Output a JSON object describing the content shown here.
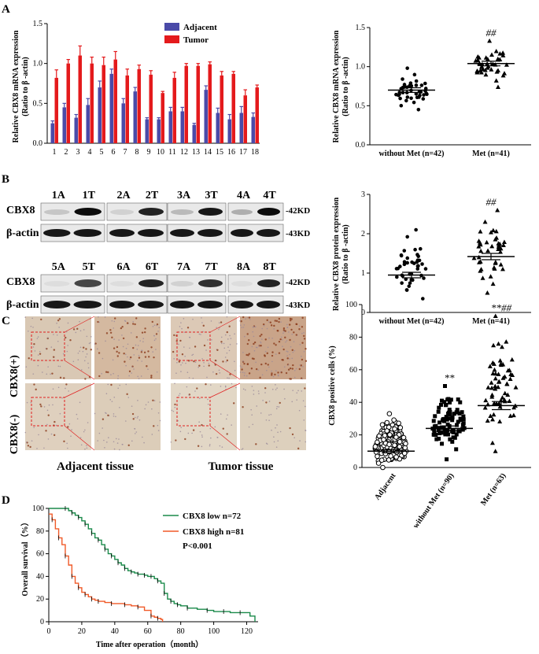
{
  "panels": {
    "A": "A",
    "B": "B",
    "C": "C",
    "D": "D"
  },
  "colors": {
    "adjacent": "#4a4aa8",
    "tumor": "#e41a1c",
    "kmLow": "#1a8a4a",
    "kmHigh": "#f05a28",
    "ihcRed": "#e02020"
  },
  "chart_data": [
    {
      "id": "A-bar",
      "type": "bar",
      "ylabel_line1": "Relative CBX8 mRNA expression",
      "ylabel_line2": "(Ratio to β -actin)",
      "categories": [
        "1",
        "2",
        "3",
        "4",
        "5",
        "6",
        "7",
        "8",
        "9",
        "10",
        "11",
        "12",
        "13",
        "14",
        "15",
        "16",
        "17",
        "18"
      ],
      "series": [
        {
          "name": "Adjacent",
          "values": [
            0.25,
            0.45,
            0.32,
            0.48,
            0.7,
            0.87,
            0.5,
            0.65,
            0.3,
            0.3,
            0.4,
            0.4,
            0.23,
            0.67,
            0.38,
            0.3,
            0.38,
            0.33
          ],
          "errors": [
            0.03,
            0.05,
            0.04,
            0.08,
            0.08,
            0.06,
            0.06,
            0.05,
            0.02,
            0.02,
            0.05,
            0.05,
            0.02,
            0.05,
            0.06,
            0.06,
            0.08,
            0.05
          ]
        },
        {
          "name": "Tumor",
          "values": [
            0.82,
            1.0,
            1.1,
            1.0,
            0.98,
            1.05,
            0.85,
            0.93,
            0.86,
            0.63,
            0.82,
            0.97,
            0.97,
            0.99,
            0.85,
            0.87,
            0.6,
            0.7
          ],
          "errors": [
            0.1,
            0.05,
            0.12,
            0.08,
            0.1,
            0.1,
            0.08,
            0.05,
            0.05,
            0.02,
            0.07,
            0.03,
            0.03,
            0.03,
            0.05,
            0.03,
            0.07,
            0.03
          ]
        }
      ],
      "ylim": [
        0,
        1.5
      ],
      "yticks": [
        "0.0",
        "0.5",
        "1.0",
        "1.5"
      ]
    },
    {
      "id": "A-scatter",
      "type": "scatter",
      "ylabel_line1": "Relative CBX8 mRNA expression",
      "ylabel_line2": "(Ratio to β -actin)",
      "categories": [
        "without Met (n=42)",
        "Met (n=41)"
      ],
      "means": [
        0.7,
        1.04
      ],
      "sem": [
        0.03,
        0.03
      ],
      "annotation": "##",
      "ylim": [
        0,
        1.5
      ],
      "yticks": [
        "0.0",
        "0.5",
        "1.0",
        "1.5"
      ],
      "n": [
        42,
        41
      ],
      "range": [
        [
          0.45,
          0.98
        ],
        [
          0.74,
          1.33
        ]
      ]
    },
    {
      "id": "B-scatter",
      "type": "scatter",
      "ylabel_line1": "Relative CBX8 protein expression",
      "ylabel_line2": "(Ratio to β -actin)",
      "categories": [
        "without Met (n=42)",
        "Met (n=41)"
      ],
      "means": [
        0.95,
        1.42
      ],
      "sem": [
        0.07,
        0.08
      ],
      "annotation": "##",
      "ylim": [
        0,
        3
      ],
      "yticks": [
        "0",
        "1",
        "2",
        "3"
      ],
      "n": [
        42,
        41
      ],
      "range": [
        [
          0.35,
          2.1
        ],
        [
          0.5,
          2.6
        ]
      ]
    },
    {
      "id": "C-scatter",
      "type": "scatter",
      "ylabel_line1": "CBX8 positive cells (%)",
      "categories": [
        "Adjacent",
        "without Met (n=90)",
        "Met (n=63)"
      ],
      "means": [
        10,
        24,
        38
      ],
      "sem": [
        1,
        1.5,
        2.5
      ],
      "annotations": [
        "",
        "**",
        "**##"
      ],
      "ylim": [
        0,
        100
      ],
      "yticks": [
        "0",
        "20",
        "40",
        "60",
        "80",
        "100"
      ],
      "n": [
        150,
        90,
        63
      ],
      "range": [
        [
          0,
          33
        ],
        [
          5,
          50
        ],
        [
          10,
          93
        ]
      ]
    },
    {
      "id": "D-km",
      "type": "line",
      "xlabel": "Time after operation（month）",
      "ylabel": "Overall survival（%）",
      "xticks": [
        "0",
        "20",
        "40",
        "60",
        "80",
        "100",
        "120"
      ],
      "yticks": [
        "0",
        "20",
        "40",
        "60",
        "80",
        "100"
      ],
      "xlim": [
        0,
        125
      ],
      "ylim": [
        0,
        100
      ],
      "legend": [
        "CBX8 low n=72",
        "CBX8 high n=81"
      ],
      "pvalue": "P<0.001",
      "series": [
        {
          "name": "CBX8 low n=72",
          "x": [
            0,
            10,
            12,
            14,
            16,
            18,
            20,
            22,
            24,
            26,
            28,
            30,
            32,
            34,
            36,
            38,
            40,
            42,
            44,
            46,
            48,
            50,
            52,
            54,
            56,
            58,
            60,
            62,
            64,
            66,
            68,
            70,
            72,
            74,
            76,
            78,
            80,
            84,
            90,
            96,
            100,
            106,
            110,
            116,
            122,
            125
          ],
          "y": [
            100,
            100,
            98,
            96,
            94,
            92,
            89,
            86,
            82,
            78,
            74,
            72,
            68,
            64,
            60,
            58,
            55,
            52,
            50,
            47,
            45,
            44,
            43,
            42,
            42,
            41,
            40,
            40,
            38,
            36,
            34,
            25,
            20,
            18,
            16,
            15,
            14,
            12,
            11,
            10,
            9,
            9,
            8,
            8,
            5,
            0
          ]
        },
        {
          "name": "CBX8 high n=81",
          "x": [
            0,
            2,
            4,
            6,
            8,
            10,
            12,
            14,
            16,
            18,
            20,
            22,
            24,
            26,
            28,
            30,
            34,
            38,
            42,
            46,
            50,
            54,
            58,
            62,
            64,
            66,
            68,
            69
          ],
          "y": [
            95,
            90,
            82,
            74,
            68,
            58,
            50,
            40,
            34,
            30,
            26,
            24,
            22,
            20,
            19,
            18,
            17,
            16,
            16,
            15,
            14,
            13,
            10,
            5,
            4,
            3,
            2,
            0
          ]
        }
      ]
    }
  ],
  "panelB": {
    "lanes_top": [
      "1A",
      "1T",
      "2A",
      "2T",
      "3A",
      "3T",
      "4A",
      "4T"
    ],
    "lanes_bottom": [
      "5A",
      "5T",
      "6A",
      "6T",
      "7A",
      "7T",
      "8A",
      "8T"
    ],
    "row1": "CBX8",
    "row2": "β-actin",
    "kd1": "-42KD",
    "kd2": "-43KD"
  },
  "panelC": {
    "row_labels": [
      "CBX8(+)",
      "CBX8(-)"
    ],
    "captions": [
      "Adjacent tissue",
      "Tumor tissue"
    ]
  }
}
